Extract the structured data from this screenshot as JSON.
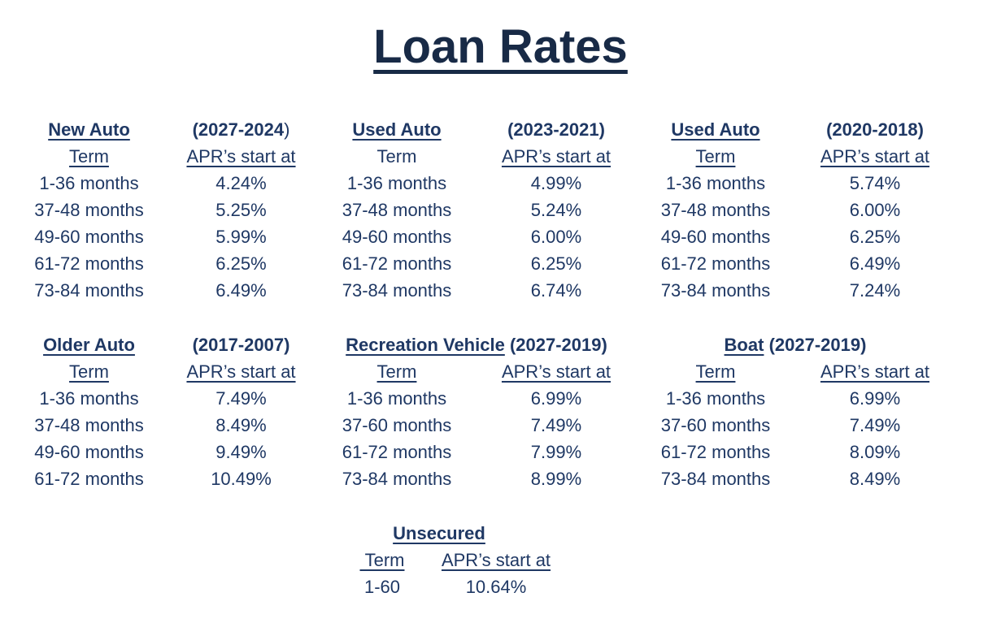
{
  "page": {
    "title": "Loan Rates",
    "background_color": "#ffffff",
    "title_color": "#182a46",
    "text_color": "#1f3864"
  },
  "tables": [
    {
      "name": "New Auto",
      "period": "(2027-2024",
      "period_tail": ")",
      "layout": "split",
      "term_header": "Term",
      "term_underlined": true,
      "apr_header": "APR’s start at",
      "rows": [
        {
          "term": "1-36 months",
          "apr": "4.24%"
        },
        {
          "term": "37-48 months",
          "apr": "5.25%"
        },
        {
          "term": "49-60 months",
          "apr": "5.99%"
        },
        {
          "term": "61-72 months",
          "apr": "6.25%"
        },
        {
          "term": "73-84 months",
          "apr": "6.49%"
        }
      ]
    },
    {
      "name": "Used Auto",
      "period": "(2023-2021)",
      "layout": "split",
      "term_header": "Term",
      "term_underlined": false,
      "apr_header": "APR’s start at",
      "rows": [
        {
          "term": "1-36 months",
          "apr": "4.99%"
        },
        {
          "term": "37-48 months",
          "apr": "5.24%"
        },
        {
          "term": "49-60 months",
          "apr": "6.00%"
        },
        {
          "term": "61-72 months",
          "apr": "6.25%"
        },
        {
          "term": "73-84 months",
          "apr": "6.74%"
        }
      ]
    },
    {
      "name": "Used Auto",
      "period": "(2020-2018)",
      "layout": "split",
      "term_header": "Term",
      "term_underlined": true,
      "apr_header": "APR’s start at",
      "rows": [
        {
          "term": "1-36 months",
          "apr": "5.74%"
        },
        {
          "term": "37-48 months",
          "apr": "6.00%"
        },
        {
          "term": "49-60 months",
          "apr": "6.25%"
        },
        {
          "term": "61-72 months",
          "apr": "6.49%"
        },
        {
          "term": "73-84 months",
          "apr": "7.24%"
        }
      ]
    },
    {
      "name": "Older Auto",
      "period": "(2017-2007)",
      "layout": "split",
      "term_header": "Term",
      "term_underlined": true,
      "apr_header": "APR’s start at",
      "rows": [
        {
          "term": "1-36 months",
          "apr": "7.49%"
        },
        {
          "term": "37-48 months",
          "apr": "8.49%"
        },
        {
          "term": "49-60 months",
          "apr": "9.49%"
        },
        {
          "term": "61-72 months",
          "apr": "10.49%"
        }
      ]
    },
    {
      "name": "Recreation Vehicle",
      "period": "(2027-2019)",
      "layout": "inline",
      "term_header": "Term",
      "term_underlined": true,
      "apr_header": "APR’s start at",
      "rows": [
        {
          "term": "1-36 months",
          "apr": "6.99%"
        },
        {
          "term": "37-60 months",
          "apr": "7.49%"
        },
        {
          "term": "61-72 months",
          "apr": "7.99%"
        },
        {
          "term": "73-84 months",
          "apr": "8.99%"
        }
      ]
    },
    {
      "name": "Boat",
      "period": "(2027-2019)",
      "layout": "inline",
      "term_header": "Term",
      "term_underlined": true,
      "apr_header": "APR’s start at",
      "rows": [
        {
          "term": "1-36 months",
          "apr": "6.99%"
        },
        {
          "term": "37-60 months",
          "apr": "7.49%"
        },
        {
          "term": "61-72 months",
          "apr": "8.09%"
        },
        {
          "term": "73-84 months",
          "apr": "8.49%"
        }
      ]
    },
    {
      "name": "Unsecured",
      "period": "",
      "layout": "center",
      "term_header": " Term",
      "term_underlined": true,
      "apr_header": "APR’s start at",
      "rows": [
        {
          "term": "1-60",
          "apr": "10.64%"
        }
      ]
    }
  ]
}
